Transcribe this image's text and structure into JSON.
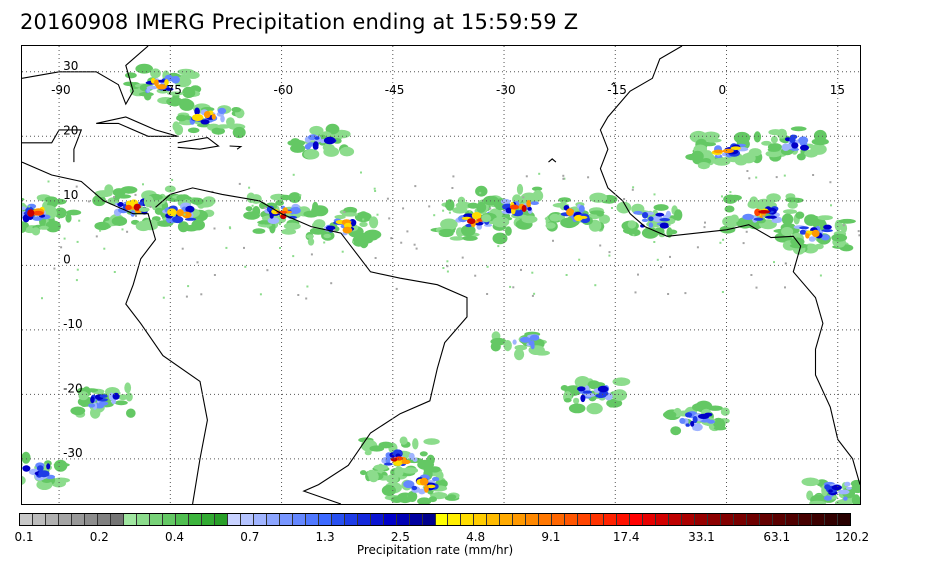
{
  "title": "20160908 IMERG Precipitation ending at 15:59:59 Z",
  "map": {
    "lon_range": [
      -95,
      18
    ],
    "lat_range": [
      -37,
      34
    ],
    "lon_ticks": [
      {
        "label": "-90",
        "value": -90
      },
      {
        "label": "-75",
        "value": -75
      },
      {
        "label": "-60",
        "value": -60
      },
      {
        "label": "-45",
        "value": -45
      },
      {
        "label": "-30",
        "value": -30
      },
      {
        "label": "-15",
        "value": -15
      },
      {
        "label": "0",
        "value": 0
      },
      {
        "label": "15",
        "value": 15
      }
    ],
    "lat_ticks": [
      {
        "label": "30",
        "value": 30
      },
      {
        "label": "20",
        "value": 20
      },
      {
        "label": "10",
        "value": 10
      },
      {
        "label": "0",
        "value": 0
      },
      {
        "label": "-10",
        "value": -10
      },
      {
        "label": "-20",
        "value": -20
      },
      {
        "label": "-30",
        "value": -30
      }
    ],
    "gridlines": "dotted",
    "coastline_color": "#000000"
  },
  "colorbar": {
    "label": "Precipitation rate (mm/hr)",
    "tick_labels": [
      "0.1",
      "0.2",
      "0.4",
      "0.7",
      "1.3",
      "2.5",
      "4.8",
      "9.1",
      "17.4",
      "33.1",
      "63.1",
      "120.2"
    ],
    "colors": [
      "#c8c8c8",
      "#bcbcbc",
      "#b0b0b0",
      "#a4a4a4",
      "#989898",
      "#8c8c8c",
      "#808080",
      "#747474",
      "#a0e6a0",
      "#8cdc8c",
      "#78d278",
      "#64c864",
      "#50be50",
      "#3cb43c",
      "#32aa32",
      "#289e28",
      "#c8d2ff",
      "#b4c3ff",
      "#a0b4ff",
      "#8ca5ff",
      "#7896ff",
      "#6487ff",
      "#5078ff",
      "#3c69ff",
      "#2850f0",
      "#1e3ce6",
      "#1428dc",
      "#0a14d2",
      "#0000c8",
      "#0000b4",
      "#0000a0",
      "#00008c",
      "#ffff00",
      "#ffee00",
      "#ffdd00",
      "#ffcc00",
      "#ffbb00",
      "#ffaa00",
      "#ff9900",
      "#ff8800",
      "#ff7700",
      "#ff6600",
      "#ff5500",
      "#ff4400",
      "#ff3300",
      "#ff2200",
      "#ff1100",
      "#ff0000",
      "#e60000",
      "#d20000",
      "#be0000",
      "#aa0000",
      "#960000",
      "#8c0000",
      "#820000",
      "#780000",
      "#6e0000",
      "#640000",
      "#5a0000",
      "#500000",
      "#460000",
      "#3c0000",
      "#320000",
      "#280000"
    ]
  },
  "precip_areas": [
    {
      "lon": -93,
      "lat": 8,
      "max": 4
    },
    {
      "lon": -80,
      "lat": 9,
      "max": 4
    },
    {
      "lon": -74,
      "lat": 8,
      "max": 3
    },
    {
      "lon": -76,
      "lat": 28,
      "max": 3
    },
    {
      "lon": -70,
      "lat": 23,
      "max": 3
    },
    {
      "lon": -60,
      "lat": 8,
      "max": 4
    },
    {
      "lon": -52,
      "lat": 6,
      "max": 3
    },
    {
      "lon": -55,
      "lat": 19,
      "max": 2
    },
    {
      "lon": -34,
      "lat": 7,
      "max": 4
    },
    {
      "lon": -28,
      "lat": 9,
      "max": 4
    },
    {
      "lon": -20,
      "lat": 8,
      "max": 3
    },
    {
      "lon": -10,
      "lat": 7,
      "max": 2
    },
    {
      "lon": 0,
      "lat": 18,
      "max": 3
    },
    {
      "lon": 5,
      "lat": 8,
      "max": 4
    },
    {
      "lon": 12,
      "lat": 5,
      "max": 3
    },
    {
      "lon": 9,
      "lat": 19,
      "max": 2
    },
    {
      "lon": -44,
      "lat": -30,
      "max": 4
    },
    {
      "lon": -41,
      "lat": -34,
      "max": 3
    },
    {
      "lon": -18,
      "lat": -20,
      "max": 2
    },
    {
      "lon": -4,
      "lat": -24,
      "max": 2
    },
    {
      "lon": -84,
      "lat": -21,
      "max": 2
    },
    {
      "lon": -93,
      "lat": -32,
      "max": 2
    },
    {
      "lon": 15,
      "lat": -35,
      "max": 2
    },
    {
      "lon": -28,
      "lat": -12,
      "max": 1
    }
  ]
}
